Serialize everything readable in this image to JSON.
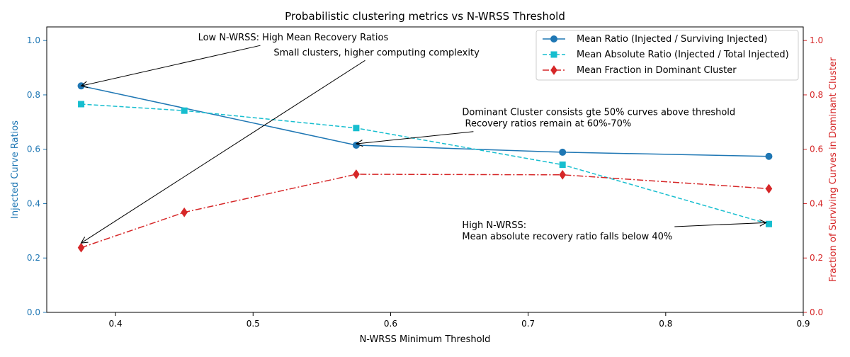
{
  "chart_data": {
    "type": "line",
    "title": "Probabilistic clustering metrics vs N-WRSS Threshold",
    "xlabel": "N-WRSS Minimum Threshold",
    "ylabel_left": "Injected Curve Ratios",
    "ylabel_right": "Fraction of Surviving Curves in Dominant Cluster",
    "xlim": [
      0.35,
      0.9
    ],
    "ylim_left": [
      0.0,
      1.05
    ],
    "ylim_right": [
      0.0,
      1.05
    ],
    "x_ticks": [
      0.4,
      0.5,
      0.6,
      0.7,
      0.8,
      0.9
    ],
    "y_ticks_left": [
      0.0,
      0.2,
      0.4,
      0.6,
      0.8,
      1.0
    ],
    "y_ticks_right": [
      0.0,
      0.2,
      0.4,
      0.6,
      0.8,
      1.0
    ],
    "x_tick_labels": [
      "0.4",
      "0.5",
      "0.6",
      "0.7",
      "0.8",
      "0.9"
    ],
    "y_tick_labels_left": [
      "0.0",
      "0.2",
      "0.4",
      "0.6",
      "0.8",
      "1.0"
    ],
    "y_tick_labels_right": [
      "0.0",
      "0.2",
      "0.4",
      "0.6",
      "0.8",
      "1.0"
    ],
    "legend_position": "top-right",
    "series": [
      {
        "name": "Mean Ratio (Injected / Surviving Injected)",
        "axis": "left",
        "color": "#1f77b4",
        "line_style": "solid",
        "marker": "circle",
        "x": [
          0.375,
          0.575,
          0.725,
          0.875
        ],
        "values": [
          0.833,
          0.615,
          0.589,
          0.574
        ]
      },
      {
        "name": "Mean Absolute Ratio (Injected / Total Injected)",
        "axis": "left",
        "color": "#17becf",
        "line_style": "dashed",
        "marker": "square",
        "x": [
          0.375,
          0.45,
          0.575,
          0.725,
          0.875
        ],
        "values": [
          0.766,
          0.742,
          0.678,
          0.543,
          0.325
        ]
      },
      {
        "name": "Mean Fraction in Dominant Cluster",
        "axis": "right",
        "color": "#d62728",
        "line_style": "dashdot",
        "marker": "diamond",
        "x": [
          0.375,
          0.45,
          0.575,
          0.725,
          0.875
        ],
        "values": [
          0.238,
          0.368,
          0.508,
          0.506,
          0.455
        ]
      }
    ],
    "annotations": [
      {
        "lines": [
          "Low N-WRSS: High Mean Recovery Ratios"
        ],
        "text_x": 0.46,
        "text_y": 1.0,
        "target_x": 0.375,
        "target_y": 0.833
      },
      {
        "lines": [
          "Small clusters, higher computing complexity"
        ],
        "text_x": 0.515,
        "text_y": 0.945,
        "target_x": 0.375,
        "target_y": 0.255
      },
      {
        "lines": [
          "Dominant Cluster consists gte 50% curves above threshold",
          " Recovery ratios remain at 60%-70%"
        ],
        "text_x": 0.652,
        "text_y": 0.725,
        "target_x": 0.575,
        "target_y": 0.62
      },
      {
        "lines": [
          "High N-WRSS:",
          "Mean absolute recovery ratio falls below 40%"
        ],
        "text_x": 0.652,
        "text_y": 0.31,
        "target_x": 0.873,
        "target_y": 0.33
      }
    ]
  }
}
